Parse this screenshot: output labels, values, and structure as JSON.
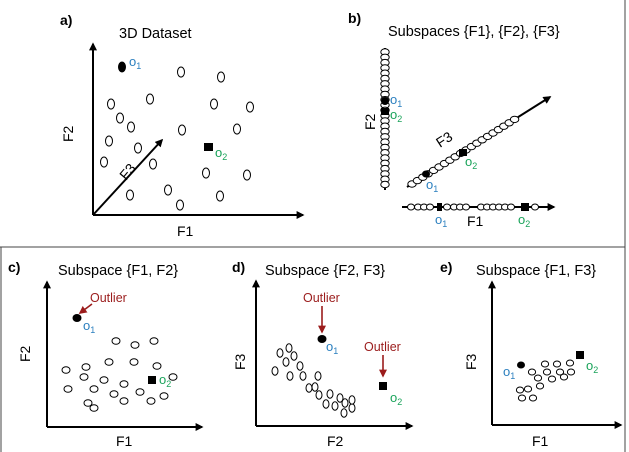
{
  "colors": {
    "o1": "#2b7fbf",
    "o2": "#1aa35a",
    "outlier": "#9b1c1c",
    "ink": "#000000"
  },
  "panels": {
    "a": {
      "letter": "a)",
      "title": "3D Dataset",
      "x_axis": "F1",
      "y_axis": "F2",
      "z_axis": "F3"
    },
    "b": {
      "letter": "b)",
      "title": "Subspaces {F1}, {F2}, {F3}",
      "f1_axis": "F1",
      "f2_axis": "F2",
      "f3_axis": "F3"
    },
    "c": {
      "letter": "c)",
      "title": "Subspace {F1, F2}",
      "x_axis": "F1",
      "y_axis": "F2",
      "annotation": "Outlier"
    },
    "d": {
      "letter": "d)",
      "title": "Subspace {F2, F3}",
      "x_axis": "F2",
      "y_axis": "F3",
      "annotation": "Outlier"
    },
    "e": {
      "letter": "e)",
      "title": "Subspace {F1, F3}",
      "x_axis": "F1",
      "y_axis": "F3"
    }
  },
  "labels": {
    "o1_base": "o",
    "o1_sub": "1",
    "o2_base": "o",
    "o2_sub": "2"
  }
}
